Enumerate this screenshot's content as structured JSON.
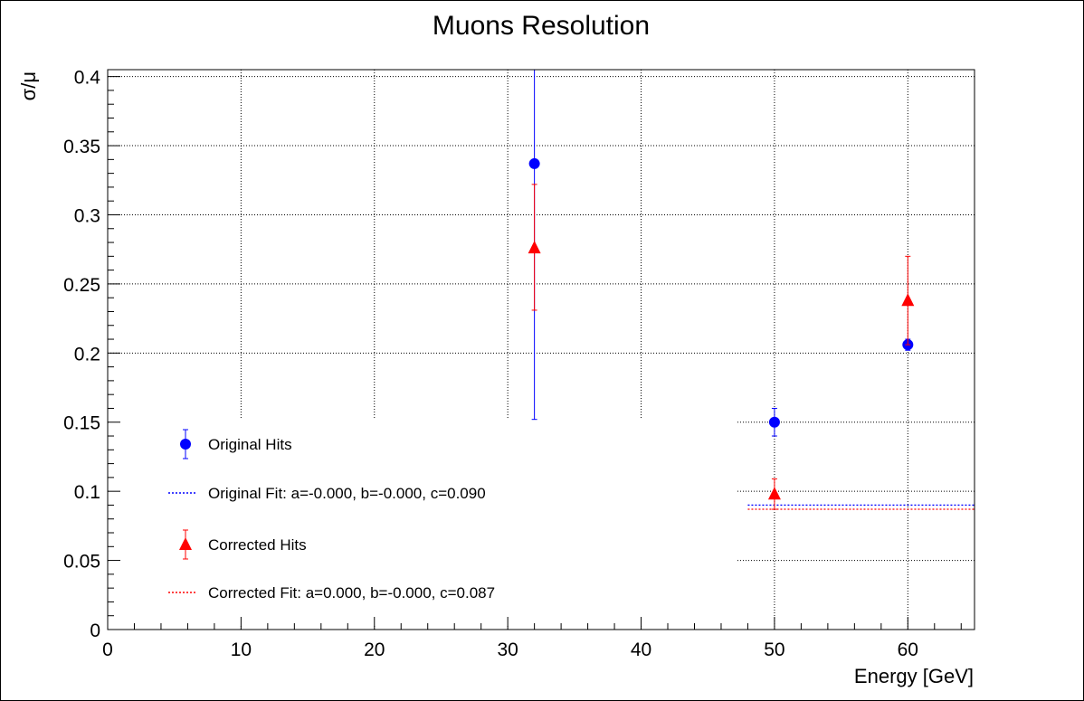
{
  "chart_data": {
    "type": "scatter",
    "title": "Muons Resolution",
    "xlabel": "Energy [GeV]",
    "ylabel": "σ/μ",
    "xlim": [
      0,
      65
    ],
    "ylim": [
      0,
      0.405
    ],
    "x_ticks": [
      "0",
      "10",
      "20",
      "30",
      "40",
      "50",
      "60"
    ],
    "y_ticks": [
      "0",
      "0.05",
      "0.1",
      "0.15",
      "0.2",
      "0.25",
      "0.3",
      "0.35",
      "0.4"
    ],
    "grid": true,
    "legend_position": "bottom-left",
    "series": [
      {
        "name": "Original Hits",
        "marker": "circle",
        "color": "#0000ff",
        "points": [
          {
            "x": 32,
            "y": 0.337,
            "err_low": 0.185,
            "err_high": 0.07
          },
          {
            "x": 50,
            "y": 0.15,
            "err_low": 0.01,
            "err_high": 0.01
          },
          {
            "x": 60,
            "y": 0.206,
            "err_low": 0.004,
            "err_high": 0.004
          }
        ]
      },
      {
        "name": "Corrected Hits",
        "marker": "triangle",
        "color": "#ff0000",
        "points": [
          {
            "x": 32,
            "y": 0.276,
            "err_low": 0.045,
            "err_high": 0.046
          },
          {
            "x": 50,
            "y": 0.098,
            "err_low": 0.011,
            "err_high": 0.011
          },
          {
            "x": 60,
            "y": 0.238,
            "err_low": 0.032,
            "err_high": 0.032
          }
        ]
      }
    ],
    "fits": [
      {
        "name": "Original Fit: a=-0.000, b=-0.000, c=0.090",
        "color": "#0000ff",
        "style": "dotted",
        "x_range": [
          48,
          65
        ],
        "y": 0.09
      },
      {
        "name": "Corrected Fit: a=0.000, b=-0.000, c=0.087",
        "color": "#ff0000",
        "style": "dotted",
        "x_range": [
          48,
          65
        ],
        "y": 0.087
      }
    ]
  }
}
